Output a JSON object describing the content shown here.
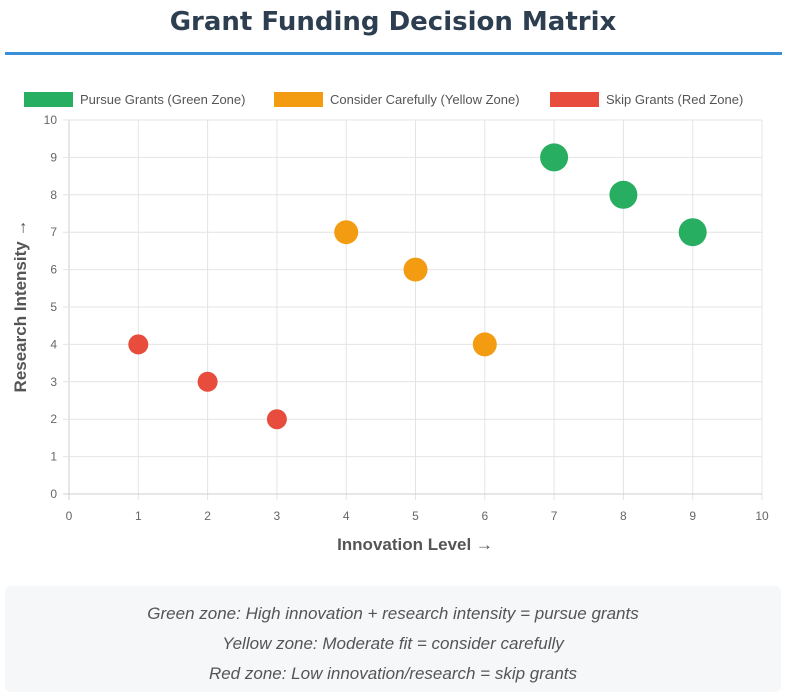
{
  "page": {
    "title": "Grant Funding Decision Matrix",
    "accent_color": "#3a8fd6"
  },
  "chart_data": {
    "type": "scatter",
    "title": "Grant Funding Decision Matrix",
    "xlabel": "Innovation Level →",
    "ylabel": "Research Intensity →",
    "xlim": [
      0,
      10
    ],
    "ylim": [
      0,
      10
    ],
    "xticks": [
      0,
      1,
      2,
      3,
      4,
      5,
      6,
      7,
      8,
      9,
      10
    ],
    "yticks": [
      0,
      1,
      2,
      3,
      4,
      5,
      6,
      7,
      8,
      9,
      10
    ],
    "grid": true,
    "legend_position": "top",
    "series": [
      {
        "name": "Pursue Grants (Green Zone)",
        "color": "#27ae60",
        "marker_size": "large",
        "points": [
          {
            "x": 7,
            "y": 9
          },
          {
            "x": 8,
            "y": 8
          },
          {
            "x": 9,
            "y": 7
          }
        ]
      },
      {
        "name": "Consider Carefully (Yellow Zone)",
        "color": "#f39c12",
        "marker_size": "medium",
        "points": [
          {
            "x": 4,
            "y": 7
          },
          {
            "x": 5,
            "y": 6
          },
          {
            "x": 6,
            "y": 4
          }
        ]
      },
      {
        "name": "Skip Grants (Red Zone)",
        "color": "#e74c3c",
        "marker_size": "small",
        "points": [
          {
            "x": 1,
            "y": 4
          },
          {
            "x": 2,
            "y": 3
          },
          {
            "x": 3,
            "y": 2
          }
        ]
      }
    ]
  },
  "notes": {
    "lines": [
      "Green zone: High innovation + research intensity = pursue grants",
      "Yellow zone: Moderate fit = consider carefully",
      "Red zone: Low innovation/research = skip grants"
    ]
  }
}
